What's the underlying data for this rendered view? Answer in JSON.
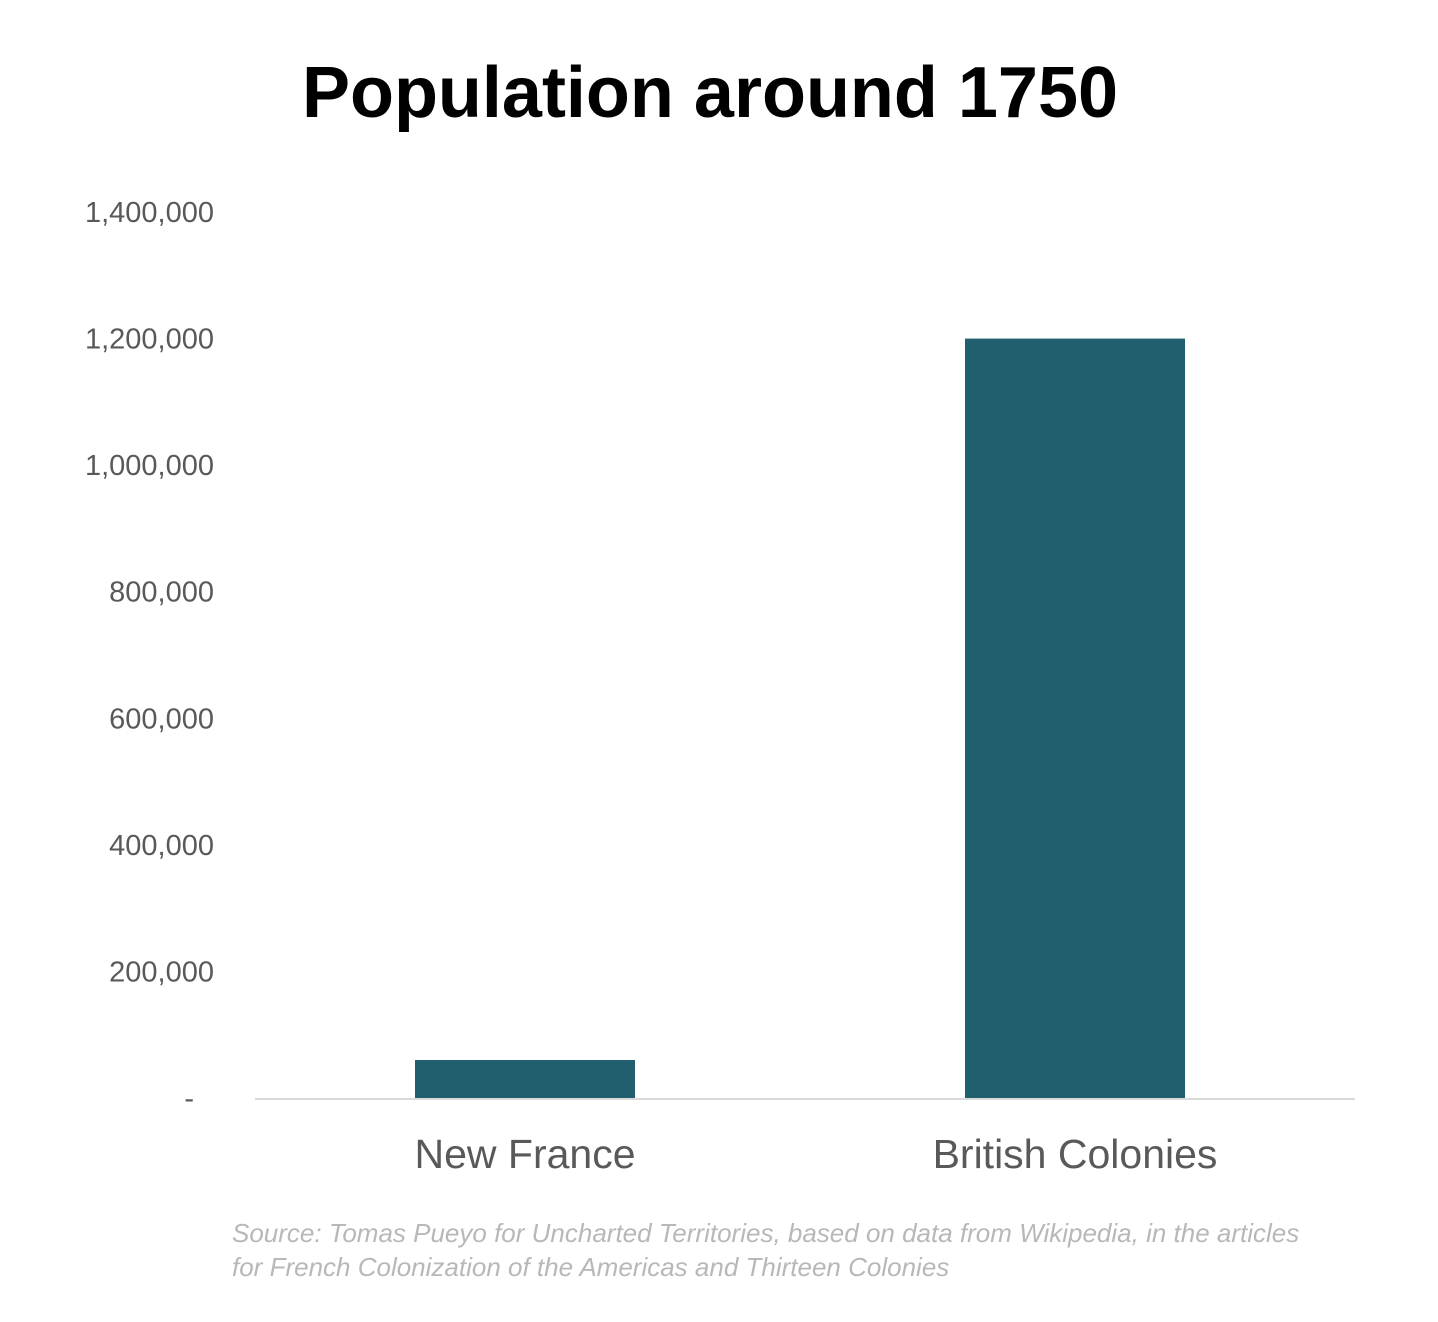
{
  "chart_data": {
    "type": "bar",
    "title": "Population around 1750",
    "categories": [
      "New France",
      "British Colonies"
    ],
    "values": [
      60000,
      1200000
    ],
    "ylim": [
      0,
      1400000
    ],
    "yticks": [
      0,
      200000,
      400000,
      600000,
      800000,
      1000000,
      1200000,
      1400000
    ],
    "ytick_labels": [
      "-",
      "200,000",
      "400,000",
      "600,000",
      "800,000",
      "1,000,000",
      "1,200,000",
      "1,400,000"
    ],
    "grid": false,
    "legend": "none",
    "bar_color": "#215f6e",
    "axis_color": "#d9d9d9"
  },
  "source": "Source: Tomas Pueyo for Uncharted Territories, based on data from Wikipedia, in the articles for French Colonization of the Americas and Thirteen Colonies"
}
